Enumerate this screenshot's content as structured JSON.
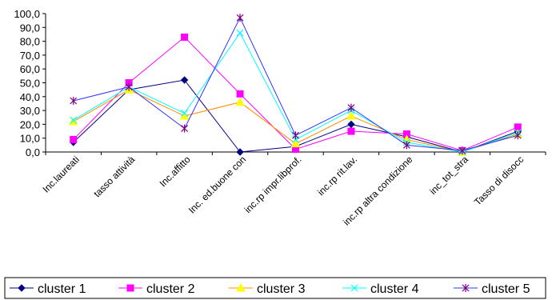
{
  "chart_data": {
    "type": "line",
    "title": "",
    "xlabel": "",
    "ylabel": "",
    "ylim": [
      0,
      100
    ],
    "yticks": [
      "0,0",
      "10,0",
      "20,0",
      "30,0",
      "40,0",
      "50,0",
      "60,0",
      "70,0",
      "80,0",
      "90,0",
      "100,0"
    ],
    "grid": false,
    "legend_position": "bottom",
    "categories": [
      "Inc.laureati",
      "tasso attività",
      "Inc.affitto",
      "Inc. ed.buone con",
      "inc.rp impr.libprof.",
      "inc.rp rit.lav.",
      "inc.rp altra condizione",
      "inc_tot_stra",
      "Tasso di disocc"
    ],
    "series": [
      {
        "name": "cluster 1",
        "color": "#000080",
        "marker": "diamond",
        "values": [
          7,
          45,
          52,
          0,
          4,
          20,
          11,
          0,
          15
        ]
      },
      {
        "name": "cluster 2",
        "color": "#ff00ff",
        "marker": "square",
        "values": [
          9,
          50,
          83,
          42,
          2,
          15,
          13,
          1,
          18
        ]
      },
      {
        "name": "cluster 3",
        "color": "#ffff00",
        "line_color": "#ff8c00",
        "marker": "triangle",
        "values": [
          22,
          45,
          26,
          36,
          6,
          26,
          9,
          0,
          13
        ]
      },
      {
        "name": "cluster 4",
        "color": "#00ffff",
        "marker": "x",
        "values": [
          23,
          47,
          28,
          86,
          9,
          30,
          7,
          0,
          14
        ]
      },
      {
        "name": "cluster 5",
        "color": "#800080",
        "line_color": "#3333ff",
        "marker": "star",
        "values": [
          37,
          47,
          17,
          97,
          12,
          32,
          5,
          1,
          12
        ]
      }
    ]
  }
}
